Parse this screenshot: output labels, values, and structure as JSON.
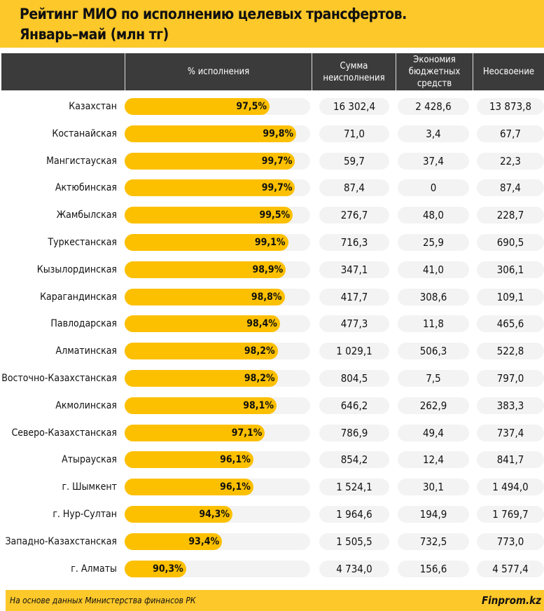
{
  "title_line1": "Рейтинг МИО по исполнению целевых трансфертов.",
  "title_line2": "Январь–май  (млн тг)",
  "headers": [
    "% исполнения",
    "Сумма неисполнения",
    "Экономия бюджетных средств",
    "Неосвоение"
  ],
  "footer": {
    "source": "На основе данных Министерства финансов РК",
    "brand": "Finprom.kz"
  },
  "colors": {
    "accent": "#fcc000",
    "header_bg": "#3b3b3b",
    "title_bg": "#fcc82a"
  },
  "chart_data": {
    "type": "table",
    "bar_axis_range": [
      85,
      101
    ],
    "rows": [
      {
        "region": "Казахстан",
        "pct": 97.5,
        "pct_label": "97,5%",
        "sum": "16 302,4",
        "economy": "2 428,6",
        "unspent": "13 873,8"
      },
      {
        "region": "Костанайская",
        "pct": 99.8,
        "pct_label": "99,8%",
        "sum": "71,0",
        "economy": "3,4",
        "unspent": "67,7"
      },
      {
        "region": "Мангистауская",
        "pct": 99.7,
        "pct_label": "99,7%",
        "sum": "59,7",
        "economy": "37,4",
        "unspent": "22,3"
      },
      {
        "region": "Актюбинская",
        "pct": 99.7,
        "pct_label": "99,7%",
        "sum": "87,4",
        "economy": "0",
        "unspent": "87,4"
      },
      {
        "region": "Жамбылская",
        "pct": 99.5,
        "pct_label": "99,5%",
        "sum": "276,7",
        "economy": "48,0",
        "unspent": "228,7"
      },
      {
        "region": "Туркестанская",
        "pct": 99.1,
        "pct_label": "99,1%",
        "sum": "716,3",
        "economy": "25,9",
        "unspent": "690,5"
      },
      {
        "region": "Кызылординская",
        "pct": 98.9,
        "pct_label": "98,9%",
        "sum": "347,1",
        "economy": "41,0",
        "unspent": "306,1"
      },
      {
        "region": "Карагандинская",
        "pct": 98.8,
        "pct_label": "98,8%",
        "sum": "417,7",
        "economy": "308,6",
        "unspent": "109,1"
      },
      {
        "region": "Павлодарская",
        "pct": 98.4,
        "pct_label": "98,4%",
        "sum": "477,3",
        "economy": "11,8",
        "unspent": "465,6"
      },
      {
        "region": "Алматинская",
        "pct": 98.2,
        "pct_label": "98,2%",
        "sum": "1 029,1",
        "economy": "506,3",
        "unspent": "522,8"
      },
      {
        "region": "Восточно-Казахстанская",
        "pct": 98.2,
        "pct_label": "98,2%",
        "sum": "804,5",
        "economy": "7,5",
        "unspent": "797,0"
      },
      {
        "region": "Акмолинская",
        "pct": 98.1,
        "pct_label": "98,1%",
        "sum": "646,2",
        "economy": "262,9",
        "unspent": "383,3"
      },
      {
        "region": "Северо-Казахстанская",
        "pct": 97.1,
        "pct_label": "97,1%",
        "sum": "786,9",
        "economy": "49,4",
        "unspent": "737,4"
      },
      {
        "region": "Атырауская",
        "pct": 96.1,
        "pct_label": "96,1%",
        "sum": "854,2",
        "economy": "12,4",
        "unspent": "841,7"
      },
      {
        "region": "г. Шымкент",
        "pct": 96.1,
        "pct_label": "96,1%",
        "sum": "1 524,1",
        "economy": "30,1",
        "unspent": "1 494,0"
      },
      {
        "region": "г. Нур-Султан",
        "pct": 94.3,
        "pct_label": "94,3%",
        "sum": "1 964,6",
        "economy": "194,9",
        "unspent": "1 769,7"
      },
      {
        "region": "Западно-Казахстанская",
        "pct": 93.4,
        "pct_label": "93,4%",
        "sum": "1 505,5",
        "economy": "732,5",
        "unspent": "773,0"
      },
      {
        "region": "г. Алматы",
        "pct": 90.3,
        "pct_label": "90,3%",
        "sum": "4 734,0",
        "economy": "156,6",
        "unspent": "4 577,4"
      }
    ]
  }
}
